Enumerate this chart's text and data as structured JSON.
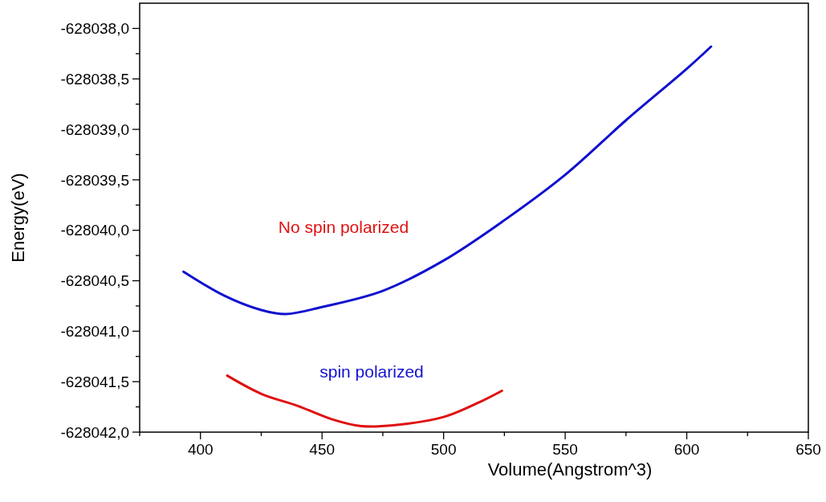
{
  "chart_data": {
    "type": "line",
    "xlabel": "Volume(Angstrom^3)",
    "ylabel": "Energy(eV)",
    "xlim": [
      375,
      650
    ],
    "ylim": [
      -628042,
      -628037.75
    ],
    "xticks": [
      {
        "value": 375,
        "label": null
      },
      400,
      {
        "value": 425,
        "label": null
      },
      450,
      {
        "value": 475,
        "label": null
      },
      500,
      {
        "value": 525,
        "label": null
      },
      550,
      {
        "value": 575,
        "label": null
      },
      600,
      {
        "value": 625,
        "label": null
      },
      650
    ],
    "yticks": [
      {
        "value": -628042,
        "label": "-628042,0"
      },
      {
        "value": -628041.75,
        "label": null
      },
      {
        "value": -628041.5,
        "label": "-628041,5"
      },
      {
        "value": -628041.25,
        "label": null
      },
      {
        "value": -628041,
        "label": "-628041,0"
      },
      {
        "value": -628040.75,
        "label": null
      },
      {
        "value": -628040.5,
        "label": "-628040,5"
      },
      {
        "value": -628040.25,
        "label": null
      },
      {
        "value": -628040,
        "label": "-628040,0"
      },
      {
        "value": -628039.75,
        "label": null
      },
      {
        "value": -628039.5,
        "label": "-628039,5"
      },
      {
        "value": -628039.25,
        "label": null
      },
      {
        "value": -628039,
        "label": "-628039,0"
      },
      {
        "value": -628038.75,
        "label": null
      },
      {
        "value": -628038.5,
        "label": "-628038,5"
      },
      {
        "value": -628038.25,
        "label": null
      },
      {
        "value": -628038,
        "label": "-628038,0"
      }
    ],
    "grid": false,
    "marker": "none",
    "line_style": "solid",
    "series": [
      {
        "color": "#e01010",
        "x": [
          411,
          425,
          440,
          455,
          466,
          480,
          500,
          515,
          524
        ],
        "values": [
          -628041.44,
          -628041.62,
          -628041.74,
          -628041.88,
          -628041.94,
          -628041.93,
          -628041.85,
          -628041.7,
          -628041.59
        ]
      },
      {
        "color": "#1010d0",
        "x": [
          393,
          410,
          425,
          435,
          450,
          475,
          500,
          525,
          550,
          575,
          600,
          610
        ],
        "values": [
          -628040.41,
          -628040.65,
          -628040.79,
          -628040.83,
          -628040.76,
          -628040.6,
          -628040.3,
          -628039.9,
          -628039.45,
          -628038.91,
          -628038.4,
          -628038.18
        ]
      }
    ],
    "annotations": [
      "No spin polarized",
      "spin polarized"
    ]
  }
}
